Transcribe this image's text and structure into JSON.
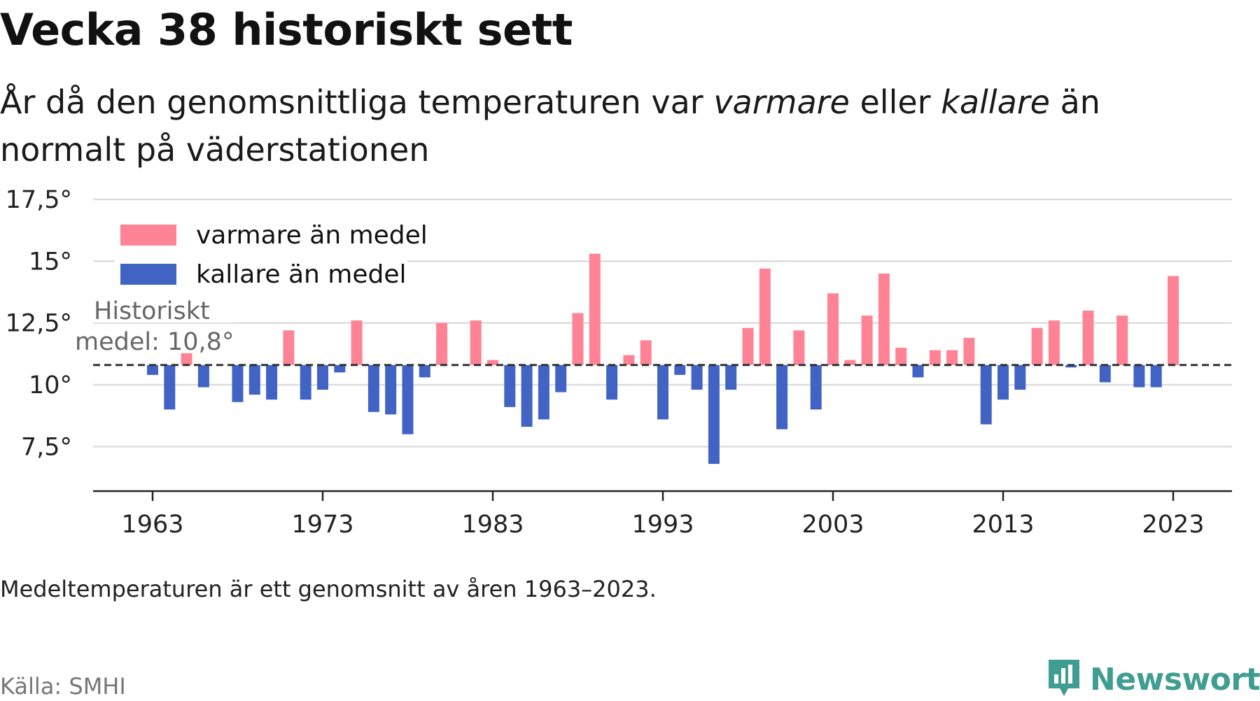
{
  "title": "Vecka 38 historiskt sett",
  "subtitle": {
    "part1": "År då den genomsnittliga temperaturen var ",
    "warm_word": "varmare",
    "part2": " eller ",
    "cold_word": "kallare",
    "part3": " än normalt på väderstationen"
  },
  "note": "Medeltemperaturen är ett genomsnitt av åren 1963–2023.",
  "source": "Källa: SMHI",
  "brand": {
    "name": "Newsworthy",
    "icon": "newsworthy-logo-icon",
    "color": "#3f9d92"
  },
  "colors": {
    "warm": "#ff8394",
    "cold": "#4163c4",
    "mean_line": "#333333",
    "grid": "#dddddd"
  },
  "chart_data": {
    "type": "bar",
    "title": "Vecka 38 historiskt sett",
    "baseline": 10.8,
    "ylim": [
      6.5,
      17.5
    ],
    "yticks": [
      7.5,
      10,
      12.5,
      15,
      17.5
    ],
    "ytick_labels": [
      "7,5°",
      "10°",
      "12,5°",
      "15°",
      "17,5°"
    ],
    "xticks": [
      1963,
      1973,
      1983,
      1993,
      2003,
      2013,
      2023
    ],
    "xtick_labels": [
      "1963",
      "1973",
      "1983",
      "1993",
      "2003",
      "2013",
      "2023"
    ],
    "grid": true,
    "legend_position": "top-left",
    "legend": [
      {
        "label": "varmare än medel",
        "color": "#ff8394"
      },
      {
        "label": "kallare än medel",
        "color": "#4163c4"
      }
    ],
    "annotation": {
      "line1": "Historiskt",
      "line2": "medel: 10,8°"
    },
    "years": [
      1963,
      1964,
      1965,
      1966,
      1967,
      1968,
      1969,
      1970,
      1971,
      1972,
      1973,
      1974,
      1975,
      1976,
      1977,
      1978,
      1979,
      1980,
      1981,
      1982,
      1983,
      1984,
      1985,
      1986,
      1987,
      1988,
      1989,
      1990,
      1991,
      1992,
      1993,
      1994,
      1995,
      1996,
      1997,
      1998,
      1999,
      2000,
      2001,
      2002,
      2003,
      2004,
      2005,
      2006,
      2007,
      2008,
      2009,
      2010,
      2011,
      2012,
      2013,
      2014,
      2015,
      2016,
      2017,
      2018,
      2019,
      2020,
      2021,
      2022,
      2023
    ],
    "values": [
      10.4,
      9.0,
      11.3,
      9.9,
      null,
      9.3,
      9.6,
      9.4,
      12.2,
      9.4,
      9.8,
      10.5,
      12.6,
      8.9,
      8.8,
      8.0,
      10.3,
      12.5,
      null,
      12.6,
      11.0,
      9.1,
      8.3,
      8.6,
      9.7,
      12.9,
      15.3,
      9.4,
      11.2,
      11.8,
      8.6,
      10.4,
      9.8,
      6.8,
      9.8,
      12.3,
      14.7,
      8.2,
      12.2,
      9.0,
      13.7,
      11.0,
      12.8,
      14.5,
      11.5,
      10.3,
      11.4,
      11.4,
      11.9,
      8.4,
      9.4,
      9.8,
      12.3,
      12.6,
      10.7,
      13.0,
      10.1,
      12.8,
      9.9,
      9.9,
      14.4
    ]
  }
}
